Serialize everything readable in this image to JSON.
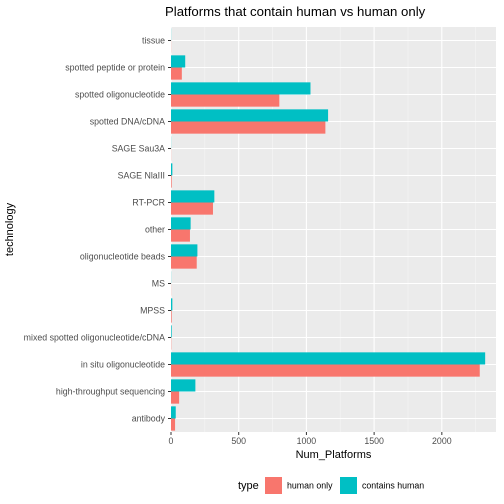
{
  "chart_data": {
    "type": "bar",
    "orientation": "horizontal",
    "title": "Platforms that contain human vs human only",
    "xlabel": "Num_Platforms",
    "ylabel": "technology",
    "xlim": [
      0,
      2400
    ],
    "x_ticks": [
      0,
      500,
      1000,
      1500,
      2000
    ],
    "grid": true,
    "legend_position": "bottom",
    "legend_title": "type",
    "categories": [
      "tissue",
      "spotted peptide or protein",
      "spotted oligonucleotide",
      "spotted DNA/cDNA",
      "SAGE Sau3A",
      "SAGE NlaIII",
      "RT-PCR",
      "other",
      "oligonucleotide beads",
      "MS",
      "MPSS",
      "mixed spotted oligonucleotide/cDNA",
      "in situ oligonucleotide",
      "high-throughput sequencing",
      "antibody"
    ],
    "series": [
      {
        "name": "human only",
        "color": "#F8766D",
        "values": [
          1,
          80,
          800,
          1140,
          1,
          5,
          310,
          140,
          190,
          1,
          5,
          2,
          2280,
          60,
          30
        ]
      },
      {
        "name": "contains human",
        "color": "#00BFC4",
        "values": [
          1,
          105,
          1030,
          1160,
          1,
          10,
          320,
          145,
          195,
          1,
          10,
          5,
          2320,
          180,
          35
        ]
      }
    ]
  }
}
